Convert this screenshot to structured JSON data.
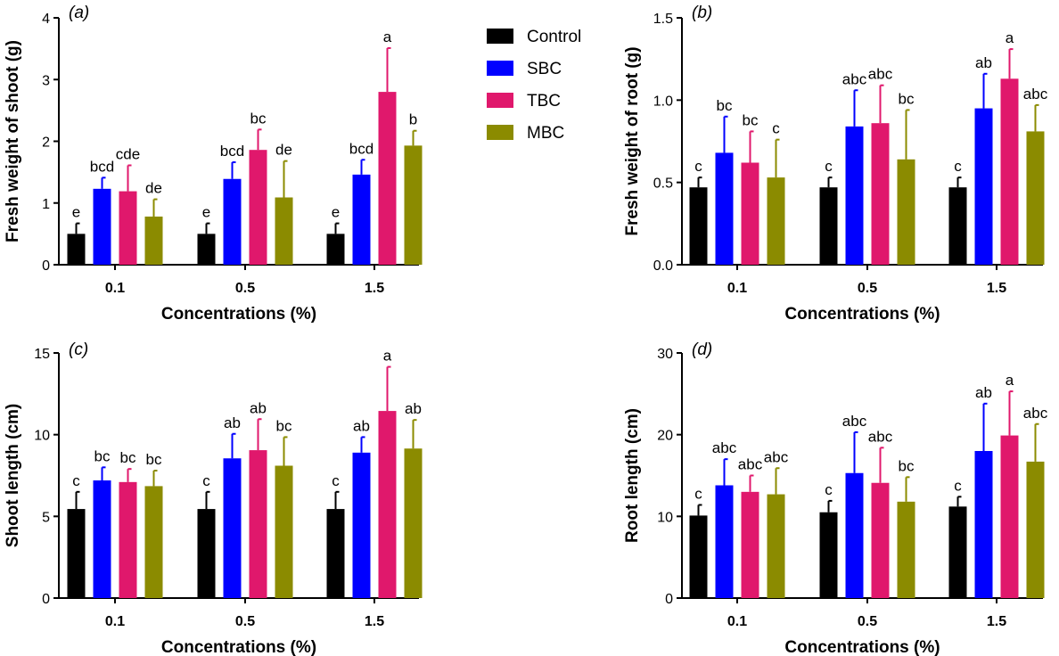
{
  "chart_data": [
    {
      "type": "bar",
      "panel_label": "(a)",
      "xlabel": "Concentrations (%)",
      "ylabel": "Fresh weight of shoot (g)",
      "categories": [
        "0.1",
        "0.5",
        "1.5"
      ],
      "ylim": [
        0,
        4
      ],
      "yticks": [
        "0",
        "1",
        "2",
        "3",
        "4"
      ],
      "series": [
        {
          "name": "Control",
          "values": [
            0.5,
            0.5,
            0.5
          ],
          "errors": [
            0.17,
            0.17,
            0.17
          ],
          "letters": [
            "e",
            "e",
            "e"
          ]
        },
        {
          "name": "SBC",
          "values": [
            1.23,
            1.39,
            1.46
          ],
          "errors": [
            0.18,
            0.27,
            0.24
          ],
          "letters": [
            "bcd",
            "bcd",
            "bcd"
          ]
        },
        {
          "name": "TBC",
          "values": [
            1.19,
            1.86,
            2.8
          ],
          "errors": [
            0.42,
            0.33,
            0.71
          ],
          "letters": [
            "cde",
            "bc",
            "a"
          ]
        },
        {
          "name": "MBC",
          "values": [
            0.78,
            1.09,
            1.93
          ],
          "errors": [
            0.28,
            0.59,
            0.24
          ],
          "letters": [
            "de",
            "de",
            "b"
          ]
        }
      ]
    },
    {
      "type": "bar",
      "panel_label": "(b)",
      "xlabel": "Concentrations (%)",
      "ylabel": "Fresh weight of root (g)",
      "categories": [
        "0.1",
        "0.5",
        "1.5"
      ],
      "ylim": [
        0,
        1.5
      ],
      "yticks": [
        "0.0",
        "0.5",
        "1.0",
        "1.5"
      ],
      "series": [
        {
          "name": "Control",
          "values": [
            0.47,
            0.47,
            0.47
          ],
          "errors": [
            0.06,
            0.06,
            0.06
          ],
          "letters": [
            "c",
            "c",
            "c"
          ]
        },
        {
          "name": "SBC",
          "values": [
            0.68,
            0.84,
            0.95
          ],
          "errors": [
            0.22,
            0.22,
            0.21
          ],
          "letters": [
            "bc",
            "abc",
            "ab"
          ]
        },
        {
          "name": "TBC",
          "values": [
            0.62,
            0.86,
            1.13
          ],
          "errors": [
            0.19,
            0.23,
            0.18
          ],
          "letters": [
            "bc",
            "abc",
            "a"
          ]
        },
        {
          "name": "MBC",
          "values": [
            0.53,
            0.64,
            0.81
          ],
          "errors": [
            0.23,
            0.3,
            0.16
          ],
          "letters": [
            "c",
            "bc",
            "abc"
          ]
        }
      ]
    },
    {
      "type": "bar",
      "panel_label": "(c)",
      "xlabel": "Concentrations (%)",
      "ylabel": "Shoot length (cm)",
      "categories": [
        "0.1",
        "0.5",
        "1.5"
      ],
      "ylim": [
        0,
        15
      ],
      "yticks": [
        "0",
        "5",
        "10",
        "15"
      ],
      "series": [
        {
          "name": "Control",
          "values": [
            5.45,
            5.45,
            5.45
          ],
          "errors": [
            1.05,
            1.05,
            1.05
          ],
          "letters": [
            "c",
            "c",
            "c"
          ]
        },
        {
          "name": "SBC",
          "values": [
            7.2,
            8.55,
            8.9
          ],
          "errors": [
            0.8,
            1.5,
            0.95
          ],
          "letters": [
            "bc",
            "ab",
            "ab"
          ]
        },
        {
          "name": "TBC",
          "values": [
            7.1,
            9.05,
            11.45
          ],
          "errors": [
            0.8,
            1.9,
            2.7
          ],
          "letters": [
            "bc",
            "ab",
            "a"
          ]
        },
        {
          "name": "MBC",
          "values": [
            6.85,
            8.1,
            9.15
          ],
          "errors": [
            0.95,
            1.75,
            1.75
          ],
          "letters": [
            "bc",
            "bc",
            "ab"
          ]
        }
      ]
    },
    {
      "type": "bar",
      "panel_label": "(d)",
      "xlabel": "Concentrations (%)",
      "ylabel": "Root length (cm)",
      "categories": [
        "0.1",
        "0.5",
        "1.5"
      ],
      "ylim": [
        0,
        30
      ],
      "yticks": [
        "0",
        "10",
        "20",
        "30"
      ],
      "series": [
        {
          "name": "Control",
          "values": [
            10.1,
            10.5,
            11.2
          ],
          "errors": [
            1.3,
            1.4,
            1.2
          ],
          "letters": [
            "c",
            "c",
            "c"
          ]
        },
        {
          "name": "SBC",
          "values": [
            13.8,
            15.3,
            18.0
          ],
          "errors": [
            3.2,
            5.0,
            5.8
          ],
          "letters": [
            "abc",
            "abc",
            "ab"
          ]
        },
        {
          "name": "TBC",
          "values": [
            13.0,
            14.1,
            19.9
          ],
          "errors": [
            2.0,
            4.3,
            5.4
          ],
          "letters": [
            "abc",
            "abc",
            "a"
          ]
        },
        {
          "name": "MBC",
          "values": [
            12.7,
            11.8,
            16.7
          ],
          "errors": [
            3.2,
            3.0,
            4.6
          ],
          "letters": [
            "abc",
            "bc",
            "abc"
          ]
        }
      ]
    }
  ],
  "legend": {
    "items": [
      {
        "label": "Control",
        "color": "#000000"
      },
      {
        "label": "SBC",
        "color": "#0000ff"
      },
      {
        "label": "TBC",
        "color": "#e0186c"
      },
      {
        "label": "MBC",
        "color": "#8b8b00"
      }
    ]
  }
}
